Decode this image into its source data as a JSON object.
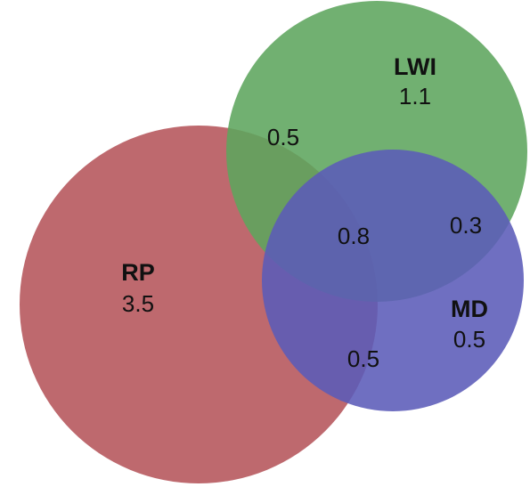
{
  "sets": {
    "rp": {
      "name": "RP",
      "value": "3.5",
      "color": "#b5545a"
    },
    "lwi": {
      "name": "LWI",
      "value": "1.1",
      "color": "#5da55d"
    },
    "md": {
      "name": "MD",
      "value": "0.5",
      "color": "#5b5bb8"
    }
  },
  "overlaps": {
    "rp_lwi": "0.5",
    "rp_lwi_md": "0.8",
    "lwi_md": "0.3",
    "rp_md": "0.5"
  }
}
